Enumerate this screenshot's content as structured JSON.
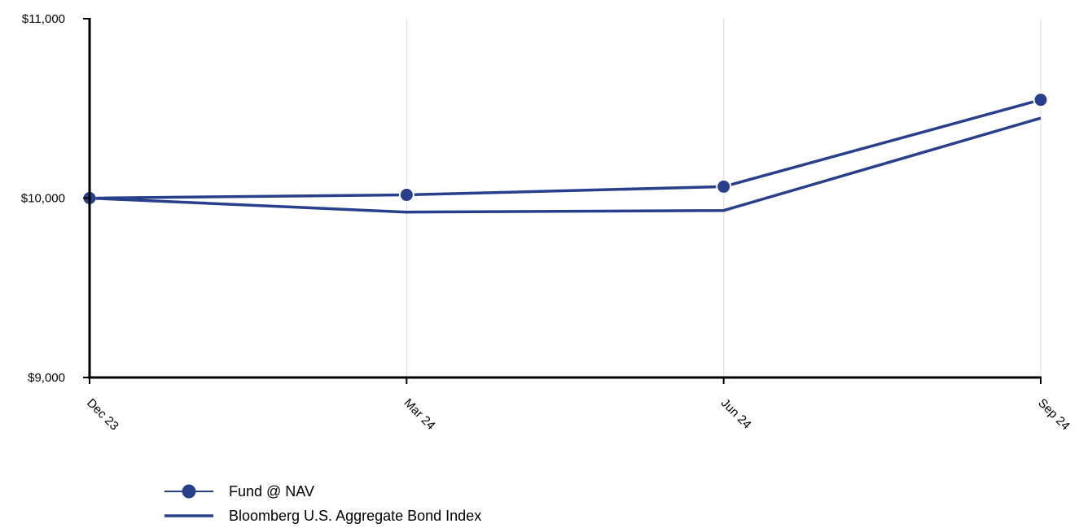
{
  "chart_data": {
    "type": "line",
    "x": [
      "Dec 23",
      "Mar 24",
      "Jun 24",
      "Sep 24"
    ],
    "y_ticks": [
      "$9,000",
      "$10,000",
      "$11,000"
    ],
    "ylim": [
      9000,
      11000
    ],
    "grid": "vertical",
    "legend_position": "bottom-left",
    "series": [
      {
        "name": "Fund @ NAV",
        "values": [
          10000,
          10018,
          10064,
          10548
        ],
        "markers": true,
        "color": "#283f8c"
      },
      {
        "name": "Bloomberg U.S. Aggregate Bond Index",
        "values": [
          10000,
          9922,
          9931,
          10446
        ],
        "markers": false,
        "color": "#283f8c"
      }
    ]
  }
}
